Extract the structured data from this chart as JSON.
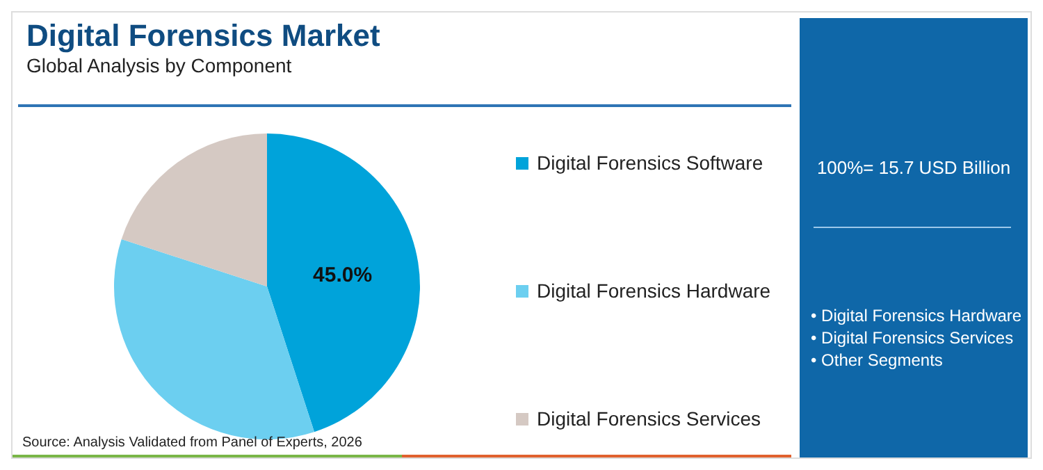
{
  "chart_data": {
    "type": "pie",
    "title": "Digital Forensics Market",
    "subtitle": "Global Analysis by Component",
    "categories": [
      "Digital Forensics Software",
      "Digital Forensics Hardware",
      "Digital Forensics Services"
    ],
    "values": [
      45,
      35,
      20
    ],
    "colors": [
      "#00a3da",
      "#6ccff0",
      "#d5c9c3"
    ],
    "value_labels": [
      "45.0%",
      null,
      null
    ],
    "legend": "right",
    "annotations": [
      "100%= 15.7 USD Billion",
      "• Digital Forensics Hardware",
      "• Digital Forensics Services",
      "• Other Segments",
      "Source: Analysis Validated from Panel of Experts, 2026"
    ]
  }
}
